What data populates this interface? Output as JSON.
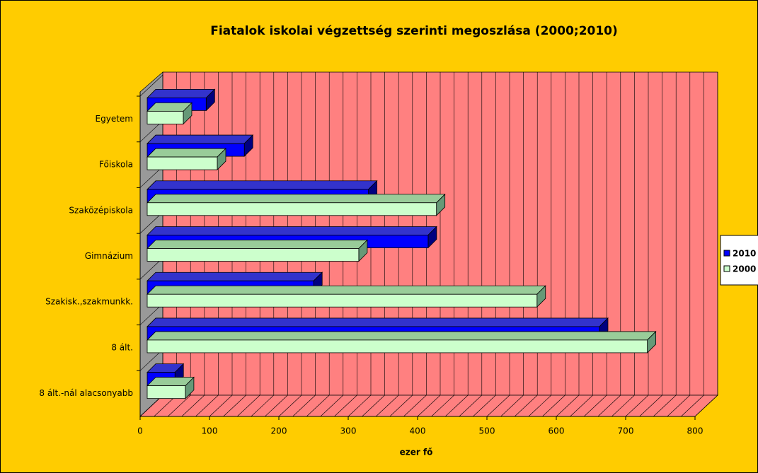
{
  "chart_data": {
    "type": "bar3d_horizontal",
    "title": "Fiatalok iskolai végzettség szerinti megoszlása (2000;2010)",
    "x_label": "ezer fő",
    "categories": [
      "Egyetem",
      "Főiskola",
      "Szaközépiskola",
      "Gimnázium",
      "Szakisk.,szakmunkk.",
      "8 ált.",
      "8 ált.-nál alacsonyabb"
    ],
    "series": [
      {
        "name": "2010",
        "color": "#0000ff",
        "values": [
          85,
          140,
          319,
          405,
          240,
          652,
          40
        ]
      },
      {
        "name": "2000",
        "color": "#ccffcc",
        "values": [
          52,
          101,
          417,
          305,
          562,
          721,
          55
        ]
      }
    ],
    "xlim": [
      0,
      800
    ],
    "xticks": [
      0,
      100,
      200,
      300,
      400,
      500,
      600,
      700,
      800
    ],
    "minor_grid_step": 20,
    "grid": true,
    "legend": "right",
    "background": "#ffcc00",
    "wall_color": "#ff8080",
    "side_wall_color": "#999999"
  }
}
